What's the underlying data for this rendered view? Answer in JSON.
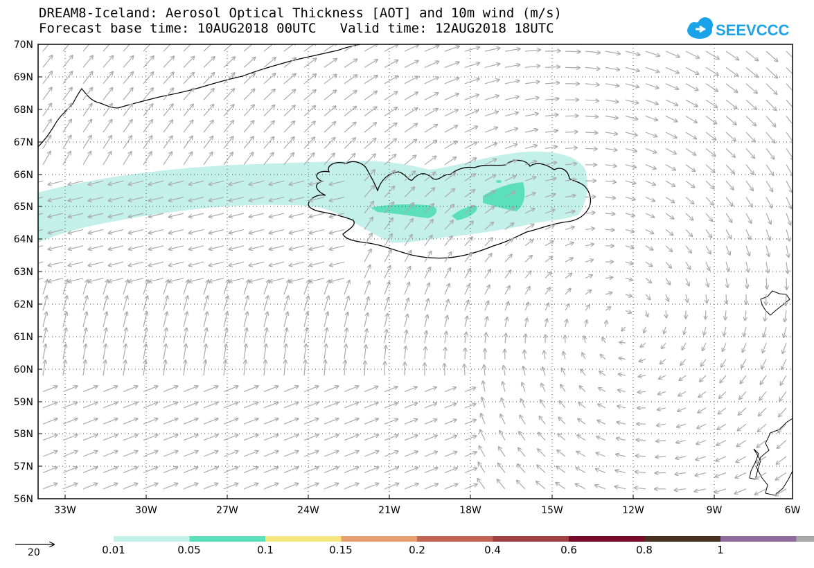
{
  "header": {
    "title_line1": "DREAM8-Iceland: Aerosol Optical Thickness [AOT] and 10m wind (m/s)",
    "title_line2": "Forecast base time: 10AUG2018 00UTC   Valid time: 12AUG2018 18UTC",
    "logo_text": "SEEVCCC"
  },
  "map": {
    "lon_range": [
      -34.5,
      -6
    ],
    "lat_range": [
      56,
      70
    ],
    "lat_ticks": [
      "70N",
      "69N",
      "68N",
      "67N",
      "66N",
      "65N",
      "64N",
      "63N",
      "62N",
      "61N",
      "60N",
      "59N",
      "58N",
      "57N",
      "56N"
    ],
    "lon_ticks": [
      "33W",
      "30W",
      "27W",
      "24W",
      "21W",
      "18W",
      "15W",
      "12W",
      "9W",
      "6W"
    ],
    "wind_arrow_color": "#aaaaaa",
    "coast_color": "#000000"
  },
  "colorbar": {
    "labels": [
      "0.01",
      "0.05",
      "0.1",
      "0.15",
      "0.2",
      "0.4",
      "0.6",
      "0.8",
      "1"
    ],
    "colors": [
      "#c4f0ea",
      "#5ce0bc",
      "#f6e680",
      "#e8a070",
      "#c46454",
      "#a04040",
      "#7a0a2a",
      "#4a3020",
      "#906c9c",
      "#a8a8a8"
    ],
    "reference_vector_label": "20"
  }
}
